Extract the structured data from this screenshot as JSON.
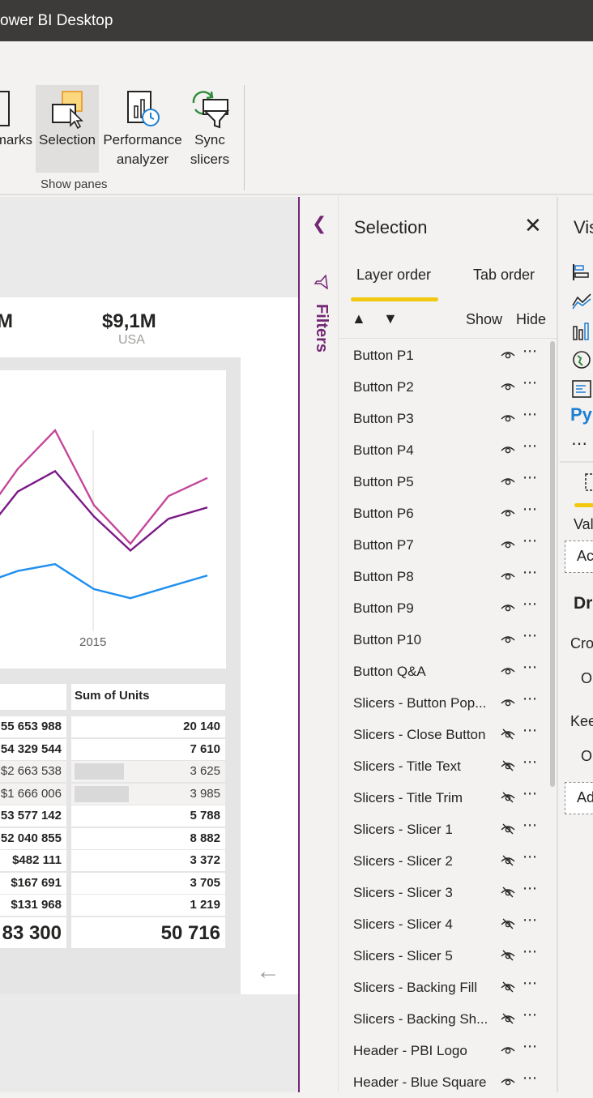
{
  "window": {
    "title": "ower BI Desktop"
  },
  "ribbon": {
    "buttons": [
      {
        "label": "marks"
      },
      {
        "label": "Selection"
      },
      {
        "label_line1": "Performance",
        "label_line2": "analyzer"
      },
      {
        "label_line1": "Sync",
        "label_line2": "slicers"
      }
    ],
    "group_label": "Show panes"
  },
  "report": {
    "kpis": [
      {
        "value": "M",
        "sub": ""
      },
      {
        "value": "$9,1M",
        "sub": "USA"
      }
    ],
    "chart_data": {
      "type": "line",
      "x_tick_labels": [
        "2015"
      ],
      "series": [
        {
          "color": "#c4479a",
          "values": [
            58,
            78,
            95,
            62,
            45,
            66,
            74
          ]
        },
        {
          "color": "#7b1a87",
          "values": [
            50,
            68,
            77,
            57,
            42,
            56,
            61
          ]
        },
        {
          "color": "#1f8ff0",
          "values": [
            28,
            33,
            36,
            25,
            21,
            26,
            31
          ]
        }
      ]
    },
    "table": {
      "column_header": "Sum of Units",
      "rows": [
        {
          "c1": "55 653 988",
          "c2": "20 140",
          "highlight": false,
          "bar": 0
        },
        {
          "c1": "54 329 544",
          "c2": "7 610",
          "highlight": false,
          "bar": 0
        },
        {
          "c1": "$2 663 538",
          "c2": "3 625",
          "highlight": true,
          "bar": 0.32
        },
        {
          "c1": "$1 666 006",
          "c2": "3 985",
          "highlight": true,
          "bar": 0.35
        },
        {
          "c1": "53 577 142",
          "c2": "5 788",
          "highlight": false,
          "bar": 0
        },
        {
          "c1": "52 040 855",
          "c2": "8 882",
          "highlight": false,
          "bar": 0
        },
        {
          "c1": "$482 111",
          "c2": "3 372",
          "highlight": false,
          "bar": 0
        },
        {
          "c1": "$167 691",
          "c2": "3 705",
          "highlight": false,
          "bar": 0
        },
        {
          "c1": "$131 968",
          "c2": "1 219",
          "highlight": false,
          "bar": 0
        }
      ],
      "total": {
        "c1": "83 300",
        "c2": "50 716"
      }
    }
  },
  "filters": {
    "label": "Filters"
  },
  "selection_pane": {
    "title": "Selection",
    "tabs": [
      "Layer order",
      "Tab order"
    ],
    "show_label": "Show",
    "hide_label": "Hide",
    "layers": [
      {
        "name": "Button P1",
        "visible": true
      },
      {
        "name": "Button P2",
        "visible": true
      },
      {
        "name": "Button P3",
        "visible": true
      },
      {
        "name": "Button P4",
        "visible": true
      },
      {
        "name": "Button P5",
        "visible": true
      },
      {
        "name": "Button P6",
        "visible": true
      },
      {
        "name": "Button P7",
        "visible": true
      },
      {
        "name": "Button P8",
        "visible": true
      },
      {
        "name": "Button P9",
        "visible": true
      },
      {
        "name": "Button P10",
        "visible": true
      },
      {
        "name": "Button Q&A",
        "visible": true
      },
      {
        "name": "Slicers - Button Pop...",
        "visible": true
      },
      {
        "name": "Slicers - Close Button",
        "visible": false
      },
      {
        "name": "Slicers - Title Text",
        "visible": false
      },
      {
        "name": "Slicers - Title Trim",
        "visible": false
      },
      {
        "name": "Slicers - Slicer 1",
        "visible": false
      },
      {
        "name": "Slicers - Slicer 2",
        "visible": false
      },
      {
        "name": "Slicers - Slicer 3",
        "visible": false
      },
      {
        "name": "Slicers - Slicer 4",
        "visible": false
      },
      {
        "name": "Slicers - Slicer 5",
        "visible": false
      },
      {
        "name": "Slicers - Backing Fill",
        "visible": false
      },
      {
        "name": "Slicers - Backing Sh...",
        "visible": false
      },
      {
        "name": "Header - PBI Logo",
        "visible": true
      },
      {
        "name": "Header - Blue Square",
        "visible": true
      }
    ]
  },
  "visualizations_pane": {
    "title": "Vis",
    "py_label": "Py",
    "values_label": "Val",
    "add_label_1": "Ac",
    "drill_label": "Dr",
    "cross_label": "Cro",
    "o_label_1": "O",
    "keep_label": "Kee",
    "o_label_2": "O",
    "add_label_2": "Ad"
  }
}
